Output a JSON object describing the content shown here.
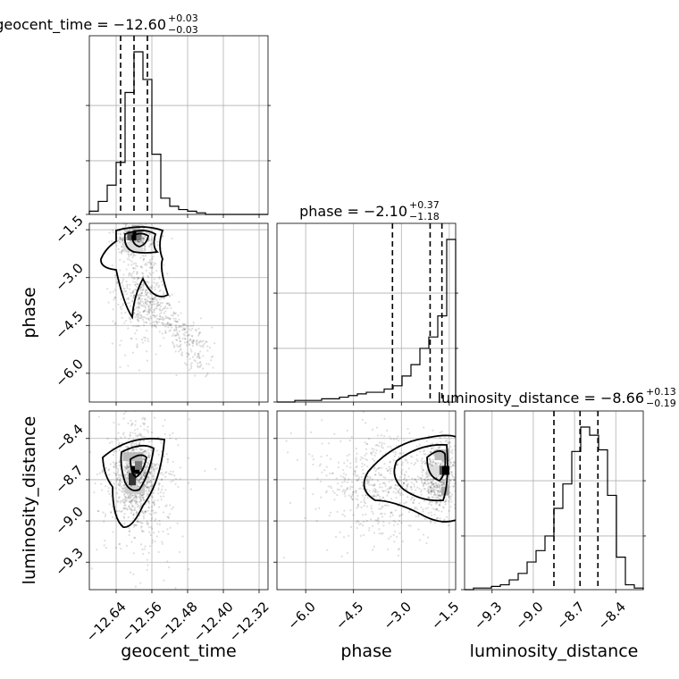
{
  "chart_data": {
    "type": "corner",
    "parameters": [
      {
        "name": "geocent_time",
        "ticks": [
          "−12.64",
          "−12.56",
          "−12.48",
          "−12.40",
          "−12.32"
        ],
        "tick_values": [
          -12.64,
          -12.56,
          -12.48,
          -12.4,
          -12.32
        ],
        "range": [
          -12.7,
          -12.3
        ]
      },
      {
        "name": "phase",
        "ticks": [
          "−6.0",
          "−4.5",
          "−3.0",
          "−1.5"
        ],
        "tick_values": [
          -6.0,
          -4.5,
          -3.0,
          -1.5
        ],
        "range": [
          -6.9,
          -1.3
        ]
      },
      {
        "name": "luminosity_distance",
        "ticks": [
          "−9.3",
          "−9.0",
          "−8.7",
          "−8.4"
        ],
        "tick_values": [
          -9.3,
          -9.0,
          -8.7,
          -8.4
        ],
        "range": [
          -9.5,
          -8.2
        ]
      }
    ],
    "titles": [
      {
        "label": "geocent_time = −12.60",
        "sup": "+0.03",
        "sub": "−0.03"
      },
      {
        "label": "phase = −2.10",
        "sup": "+0.37",
        "sub": "−1.18"
      },
      {
        "label": "luminosity_distance = −8.66",
        "sup": "+0.13",
        "sub": "−0.19"
      }
    ],
    "quantiles": [
      [
        -12.63,
        -12.6,
        -12.57
      ],
      [
        -3.28,
        -2.1,
        -1.73
      ],
      [
        -8.85,
        -8.66,
        -8.53
      ]
    ],
    "histograms": [
      {
        "counts": [
          2,
          8,
          18,
          32,
          75,
          100,
          83,
          37,
          10,
          5,
          3,
          2,
          1,
          0,
          0,
          0,
          0,
          0,
          0,
          0
        ]
      },
      {
        "counts": [
          0,
          0,
          1,
          1,
          1,
          2,
          2,
          3,
          4,
          5,
          6,
          6,
          8,
          10,
          16,
          23,
          33,
          40,
          53,
          100
        ]
      },
      {
        "counts": [
          0,
          1,
          1,
          2,
          3,
          6,
          10,
          17,
          24,
          33,
          50,
          65,
          85,
          100,
          95,
          86,
          58,
          20,
          3,
          1
        ]
      }
    ],
    "grid": true
  }
}
